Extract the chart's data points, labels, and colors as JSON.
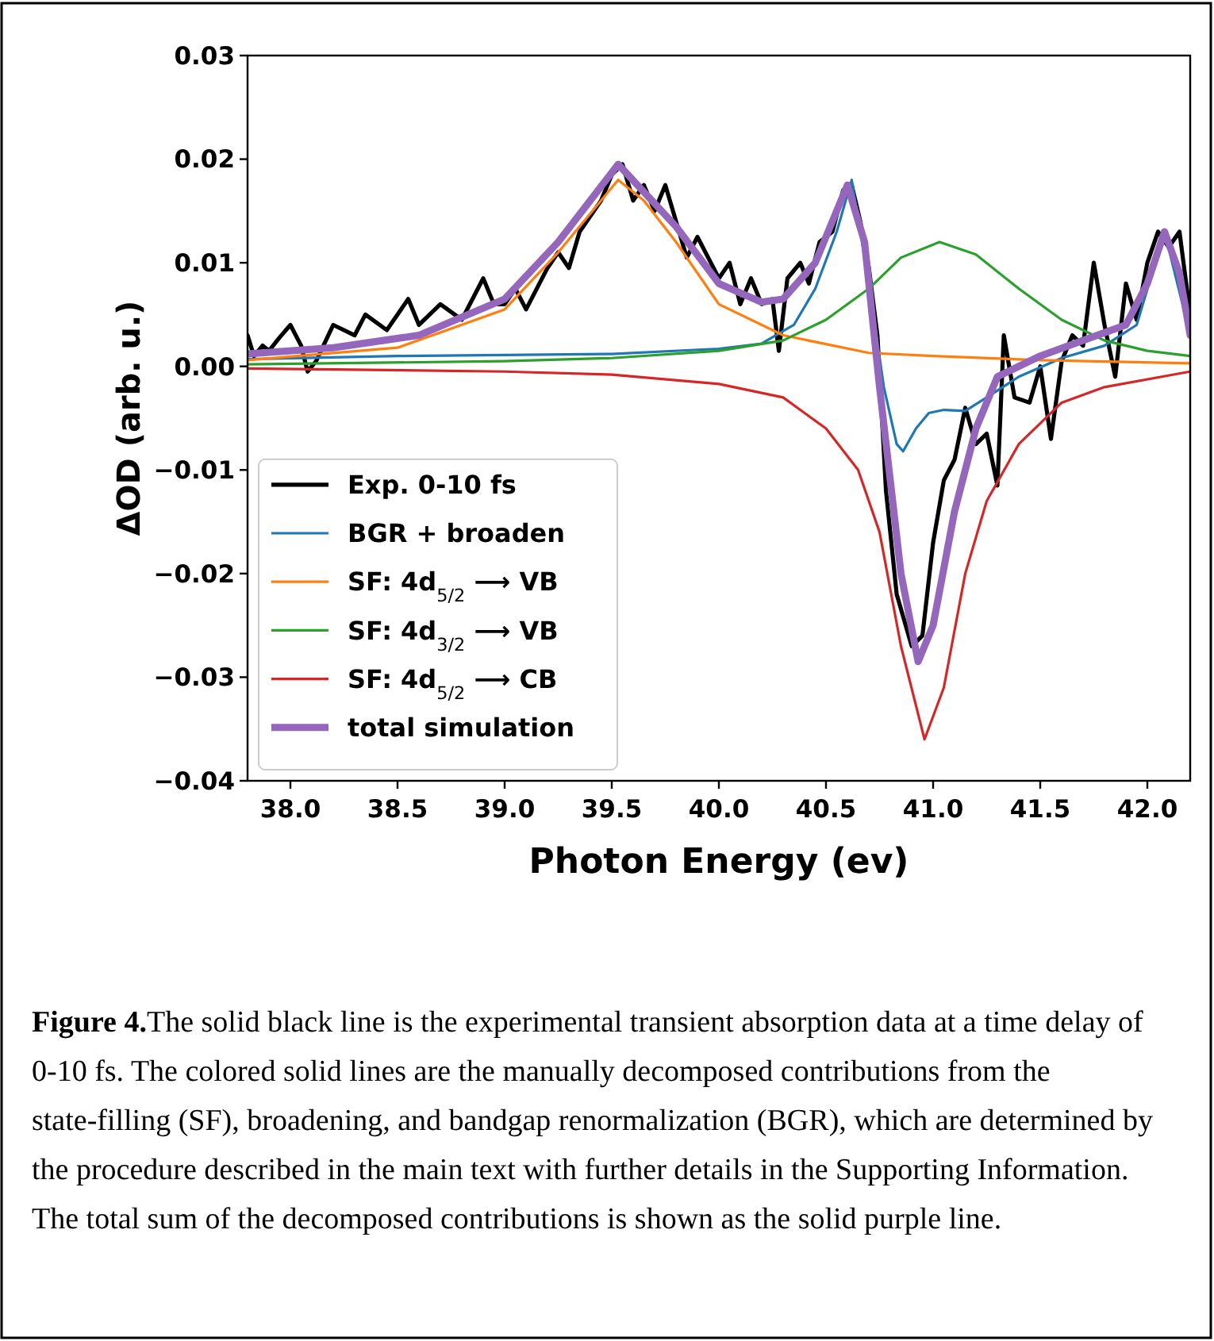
{
  "chart_data": {
    "type": "line",
    "xlabel": "Photon Energy (ev)",
    "ylabel": "ΔOD (arb. u.)",
    "xlim": [
      37.8,
      42.2
    ],
    "ylim": [
      -0.04,
      0.03
    ],
    "xticks": [
      {
        "value": 38,
        "label": "38.0"
      },
      {
        "value": 38.5,
        "label": "38.5"
      },
      {
        "value": 39,
        "label": "39.0"
      },
      {
        "value": 39.5,
        "label": "39.5"
      },
      {
        "value": 40,
        "label": "40.0"
      },
      {
        "value": 40.5,
        "label": "40.5"
      },
      {
        "value": 41,
        "label": "41.0"
      },
      {
        "value": 41.5,
        "label": "41.5"
      },
      {
        "value": 42,
        "label": "42.0"
      }
    ],
    "yticks": [
      {
        "value": -0.04,
        "label": "−0.04"
      },
      {
        "value": -0.03,
        "label": "−0.03"
      },
      {
        "value": -0.02,
        "label": "−0.02"
      },
      {
        "value": -0.01,
        "label": "−0.01"
      },
      {
        "value": 0,
        "label": "0.00"
      },
      {
        "value": 0.01,
        "label": "0.01"
      },
      {
        "value": 0.02,
        "label": "0.02"
      },
      {
        "value": 0.03,
        "label": "0.03"
      }
    ],
    "grid": false,
    "legend": "bottom left",
    "marker": "none",
    "line_style": "solid",
    "series": [
      {
        "name": "Exp. 0-10 fs",
        "color": "#000000",
        "x": [
          37.8,
          37.83,
          37.87,
          37.9,
          37.95,
          38.0,
          38.05,
          38.08,
          38.12,
          38.2,
          38.3,
          38.35,
          38.45,
          38.55,
          38.6,
          38.7,
          38.8,
          38.9,
          38.95,
          39.0,
          39.05,
          39.1,
          39.2,
          39.25,
          39.3,
          39.35,
          39.45,
          39.5,
          39.55,
          39.6,
          39.65,
          39.7,
          39.75,
          39.8,
          39.85,
          39.9,
          39.95,
          40.0,
          40.05,
          40.1,
          40.15,
          40.2,
          40.25,
          40.28,
          40.32,
          40.38,
          40.42,
          40.47,
          40.53,
          40.58,
          40.62,
          40.66,
          40.7,
          40.74,
          40.78,
          40.83,
          40.9,
          40.95,
          41.0,
          41.05,
          41.1,
          41.15,
          41.2,
          41.25,
          41.3,
          41.33,
          41.38,
          41.45,
          41.5,
          41.55,
          41.6,
          41.65,
          41.7,
          41.75,
          41.8,
          41.85,
          41.9,
          41.95,
          42.0,
          42.05,
          42.1,
          42.15,
          42.2
        ],
        "values": [
          0.003,
          0.001,
          0.002,
          0.0015,
          0.0028,
          0.004,
          0.002,
          -0.0005,
          0.0005,
          0.004,
          0.003,
          0.005,
          0.0035,
          0.0065,
          0.004,
          0.006,
          0.0045,
          0.0085,
          0.006,
          0.006,
          0.0075,
          0.0055,
          0.0095,
          0.011,
          0.0095,
          0.013,
          0.016,
          0.0185,
          0.0195,
          0.016,
          0.0175,
          0.015,
          0.0175,
          0.014,
          0.0105,
          0.0125,
          0.0105,
          0.0085,
          0.01,
          0.006,
          0.0085,
          0.006,
          0.0065,
          0.0015,
          0.0085,
          0.01,
          0.008,
          0.012,
          0.013,
          0.017,
          0.0175,
          0.014,
          0.0095,
          0.003,
          -0.012,
          -0.022,
          -0.027,
          -0.026,
          -0.017,
          -0.011,
          -0.009,
          -0.004,
          -0.0075,
          -0.0065,
          -0.0115,
          0.003,
          -0.003,
          -0.0035,
          0.0,
          -0.007,
          0.0005,
          0.003,
          0.002,
          0.01,
          0.004,
          -0.001,
          0.008,
          0.0045,
          0.01,
          0.013,
          0.0115,
          0.013,
          0.005
        ]
      },
      {
        "name": "BGR + broaden",
        "color": "#1f77b4",
        "x": [
          37.8,
          38.5,
          39.5,
          40.0,
          40.2,
          40.35,
          40.45,
          40.55,
          40.62,
          40.7,
          40.77,
          40.83,
          40.86,
          40.92,
          40.98,
          41.05,
          41.15,
          41.25,
          41.4,
          41.6,
          41.8,
          41.95,
          42.08,
          42.2
        ],
        "values": [
          0.0007,
          0.001,
          0.0012,
          0.0017,
          0.0022,
          0.004,
          0.0075,
          0.013,
          0.018,
          0.008,
          -0.002,
          -0.0075,
          -0.0082,
          -0.006,
          -0.0045,
          -0.0042,
          -0.0043,
          -0.003,
          -0.001,
          0.0008,
          0.002,
          0.004,
          0.013,
          0.003
        ]
      },
      {
        "name": "SF: 4d$_{5/2}$ ⟶ VB",
        "color": "#ff7f0e",
        "x": [
          37.8,
          38.5,
          39.0,
          39.25,
          39.53,
          39.65,
          39.8,
          40.0,
          40.3,
          40.7,
          41.0,
          41.5,
          42.2
        ],
        "values": [
          0.0006,
          0.0018,
          0.0055,
          0.011,
          0.018,
          0.016,
          0.012,
          0.006,
          0.003,
          0.0013,
          0.001,
          0.0006,
          0.0003
        ]
      },
      {
        "name": "SF: 4d$_{3/2}$ ⟶ VB",
        "color": "#2ca02c",
        "x": [
          37.8,
          39.0,
          39.5,
          40.0,
          40.3,
          40.5,
          40.7,
          40.85,
          41.03,
          41.2,
          41.4,
          41.6,
          41.8,
          42.0,
          42.2
        ],
        "values": [
          0.0002,
          0.0005,
          0.0008,
          0.0015,
          0.0025,
          0.0045,
          0.0075,
          0.0105,
          0.012,
          0.0108,
          0.0075,
          0.0045,
          0.0025,
          0.0015,
          0.001
        ]
      },
      {
        "name": "SF: 4d$_{5/2}$ ⟶ CB",
        "color": "#d62728",
        "x": [
          37.8,
          39.0,
          39.5,
          40.0,
          40.3,
          40.5,
          40.65,
          40.75,
          40.85,
          40.96,
          41.05,
          41.15,
          41.25,
          41.4,
          41.6,
          41.8,
          42.2
        ],
        "values": [
          -0.0002,
          -0.0005,
          -0.0008,
          -0.0017,
          -0.003,
          -0.006,
          -0.01,
          -0.016,
          -0.027,
          -0.036,
          -0.031,
          -0.02,
          -0.013,
          -0.0075,
          -0.0035,
          -0.002,
          -0.0005
        ]
      },
      {
        "name": "total simulation",
        "color": "#9467bd",
        "x": [
          37.8,
          38.2,
          38.6,
          39.0,
          39.25,
          39.53,
          39.8,
          40.0,
          40.2,
          40.3,
          40.45,
          40.6,
          40.68,
          40.75,
          40.85,
          40.93,
          41.0,
          41.1,
          41.2,
          41.3,
          41.5,
          41.7,
          41.9,
          42.0,
          42.08,
          42.15,
          42.2
        ],
        "values": [
          0.0012,
          0.0018,
          0.003,
          0.0065,
          0.012,
          0.0195,
          0.0135,
          0.008,
          0.0062,
          0.0065,
          0.01,
          0.0175,
          0.012,
          -0.002,
          -0.02,
          -0.0285,
          -0.025,
          -0.014,
          -0.006,
          -0.001,
          0.001,
          0.0025,
          0.004,
          0.008,
          0.013,
          0.009,
          0.003
        ]
      }
    ],
    "annotations": [
      "Figure 4.The solid black line is the experimental transient absorption data at a time delay of 0-10 fs. The colored solid lines are the manually decomposed contributions from the state-filling (SF), broadening, and bandgap renormalization (BGR), which are determined by the procedure described in the main text with further details in the Supporting Information. The total sum of the decomposed contributions is shown as the solid purple line."
    ]
  }
}
